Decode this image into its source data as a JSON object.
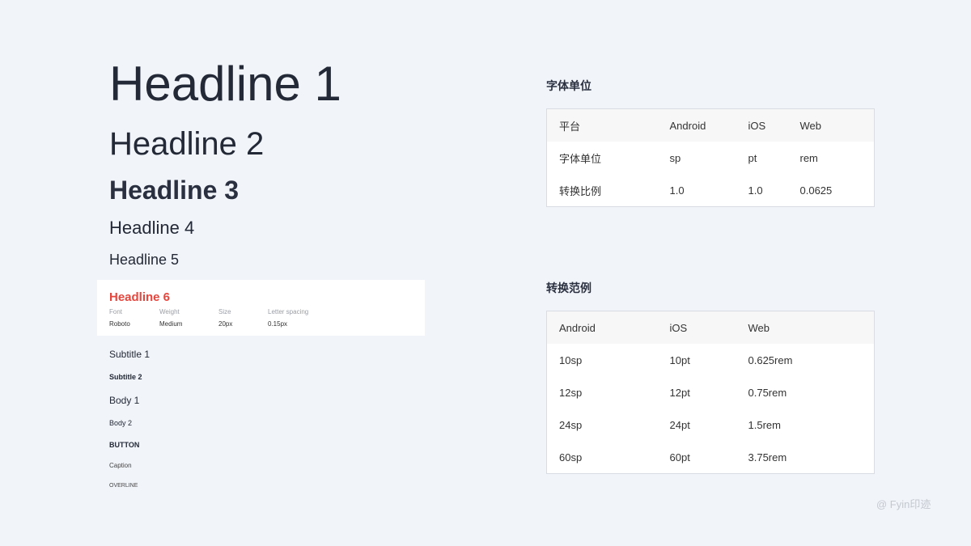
{
  "headlines": {
    "h1": "Headline 1",
    "h2": "Headline 2",
    "h3": "Headline 3",
    "h4": "Headline 4",
    "h5": "Headline 5"
  },
  "h6_card": {
    "title": "Headline 6",
    "title_color": "#e8453c",
    "labels": [
      "Font",
      "Weight",
      "Size",
      "Letter spacing"
    ],
    "values": [
      "Roboto",
      "Medium",
      "20px",
      "0.15px"
    ]
  },
  "styles": {
    "subtitle1": "Subtitle 1",
    "subtitle2": "Subtitle 2",
    "body1": "Body 1",
    "body2": "Body 2",
    "button": "BUTTON",
    "caption": "Caption",
    "overline": "OVERLINE"
  },
  "units_table": {
    "title": "字体单位",
    "header": [
      "平台",
      "Android",
      "iOS",
      "Web"
    ],
    "rows": [
      [
        "字体单位",
        "sp",
        "pt",
        "rem"
      ],
      [
        "转换比例",
        "1.0",
        "1.0",
        "0.0625"
      ]
    ]
  },
  "examples_table": {
    "title": "转换范例",
    "header": [
      "Android",
      "iOS",
      "Web"
    ],
    "rows": [
      [
        "10sp",
        "10pt",
        "0.625rem"
      ],
      [
        "12sp",
        "12pt",
        "0.75rem"
      ],
      [
        "24sp",
        "24pt",
        "1.5rem"
      ],
      [
        "60sp",
        "60pt",
        "3.75rem"
      ]
    ]
  },
  "watermark": "@ Fyin印迹"
}
